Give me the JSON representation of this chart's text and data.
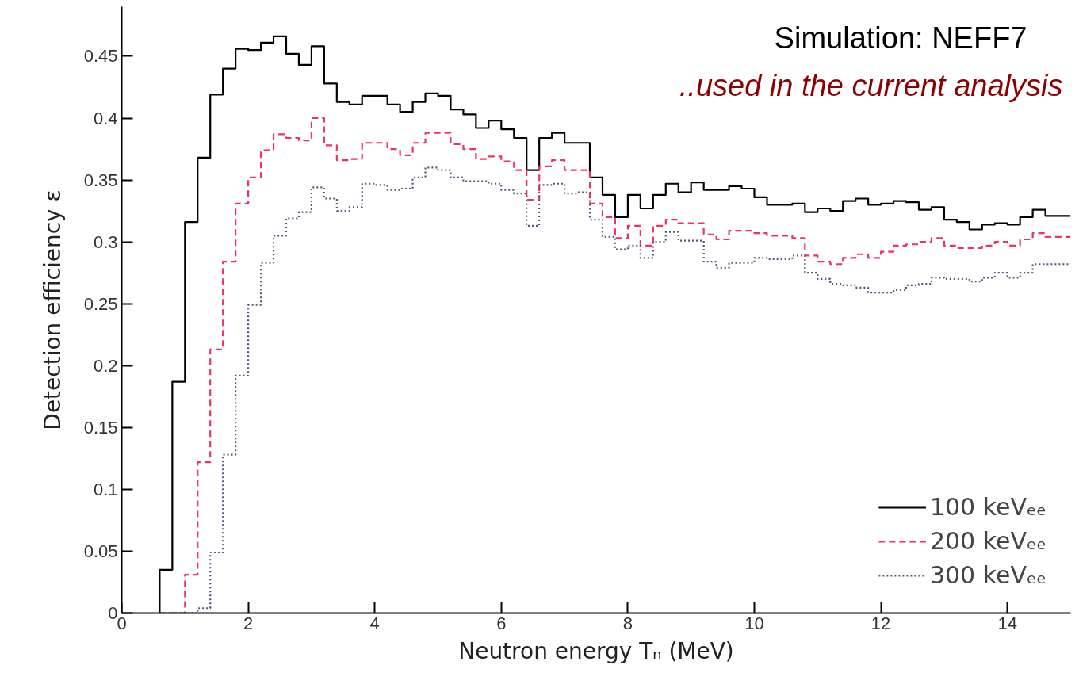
{
  "chart_data": {
    "type": "histogram",
    "xlabel": "Neutron energy Tₙ (MeV)",
    "ylabel": "Detection efficiency ε",
    "annotations": [
      "Simulation: NEFF7",
      "..used in the current analysis"
    ],
    "bins": [
      0.6,
      0.8,
      1.0,
      1.2,
      1.4,
      1.6,
      1.8,
      2.0,
      2.2,
      2.4,
      2.6,
      2.8,
      3.0,
      3.2,
      3.4,
      3.6,
      3.8,
      4.0,
      4.2,
      4.4,
      4.6,
      4.8,
      5.0,
      5.2,
      5.4,
      5.6,
      5.8,
      6.0,
      6.2,
      6.4,
      6.6,
      6.8,
      7.0,
      7.2,
      7.4,
      7.6,
      7.8,
      8.0,
      8.2,
      8.4,
      8.6,
      8.8,
      9.0,
      9.2,
      9.4,
      9.6,
      9.8,
      10.0,
      10.2,
      10.4,
      10.6,
      10.8,
      11.0,
      11.2,
      11.4,
      11.6,
      11.8,
      12.0,
      12.2,
      12.4,
      12.6,
      12.8,
      13.0,
      13.2,
      13.4,
      13.6,
      13.8,
      14.0,
      14.2,
      14.4,
      14.6,
      14.8,
      15.0
    ],
    "series": [
      {
        "name": "100 keVₑₑ",
        "color": "#000000",
        "line_style": "solid",
        "values": [
          0.035,
          0.187,
          0.316,
          0.368,
          0.419,
          0.44,
          0.456,
          0.455,
          0.461,
          0.466,
          0.452,
          0.443,
          0.458,
          0.428,
          0.413,
          0.411,
          0.418,
          0.418,
          0.411,
          0.405,
          0.413,
          0.42,
          0.418,
          0.407,
          0.403,
          0.392,
          0.398,
          0.391,
          0.384,
          0.358,
          0.384,
          0.388,
          0.38,
          0.38,
          0.352,
          0.338,
          0.32,
          0.338,
          0.327,
          0.338,
          0.347,
          0.34,
          0.348,
          0.342,
          0.342,
          0.345,
          0.343,
          0.336,
          0.33,
          0.33,
          0.331,
          0.324,
          0.327,
          0.325,
          0.333,
          0.335,
          0.33,
          0.331,
          0.333,
          0.332,
          0.326,
          0.328,
          0.318,
          0.316,
          0.31,
          0.314,
          0.315,
          0.314,
          0.32,
          0.326,
          0.321,
          0.321
        ]
      },
      {
        "name": "200 keVₑₑ",
        "color": "#f0325f",
        "line_style": "dashed",
        "values": [
          0,
          0,
          0.031,
          0.122,
          0.213,
          0.284,
          0.331,
          0.352,
          0.374,
          0.387,
          0.384,
          0.382,
          0.4,
          0.378,
          0.366,
          0.367,
          0.38,
          0.38,
          0.375,
          0.37,
          0.38,
          0.388,
          0.388,
          0.379,
          0.375,
          0.367,
          0.369,
          0.365,
          0.358,
          0.334,
          0.361,
          0.366,
          0.358,
          0.358,
          0.331,
          0.32,
          0.303,
          0.313,
          0.297,
          0.313,
          0.318,
          0.315,
          0.315,
          0.306,
          0.302,
          0.309,
          0.309,
          0.307,
          0.305,
          0.305,
          0.303,
          0.289,
          0.284,
          0.282,
          0.287,
          0.29,
          0.287,
          0.292,
          0.297,
          0.298,
          0.3,
          0.303,
          0.297,
          0.295,
          0.295,
          0.297,
          0.3,
          0.297,
          0.302,
          0.307,
          0.304,
          0.304
        ]
      },
      {
        "name": "300 keVₑₑ",
        "color": "#55557a",
        "line_style": "dotted",
        "values": [
          0,
          0,
          0,
          0.004,
          0.049,
          0.128,
          0.192,
          0.249,
          0.283,
          0.305,
          0.319,
          0.324,
          0.344,
          0.335,
          0.325,
          0.328,
          0.347,
          0.346,
          0.342,
          0.343,
          0.352,
          0.36,
          0.358,
          0.352,
          0.349,
          0.349,
          0.347,
          0.342,
          0.339,
          0.313,
          0.346,
          0.347,
          0.339,
          0.34,
          0.318,
          0.304,
          0.294,
          0.297,
          0.287,
          0.3,
          0.308,
          0.301,
          0.301,
          0.284,
          0.279,
          0.283,
          0.283,
          0.287,
          0.286,
          0.286,
          0.289,
          0.275,
          0.27,
          0.266,
          0.265,
          0.263,
          0.259,
          0.259,
          0.261,
          0.265,
          0.266,
          0.271,
          0.27,
          0.27,
          0.268,
          0.271,
          0.275,
          0.271,
          0.275,
          0.282,
          0.282,
          0.282
        ]
      }
    ],
    "xlim": [
      0,
      15
    ],
    "xticks": [
      0,
      2,
      4,
      6,
      8,
      10,
      12,
      14
    ],
    "ylim": [
      0,
      0.49
    ],
    "yticks": [
      0,
      0.05,
      0.1,
      0.15,
      0.2,
      0.25,
      0.3,
      0.35,
      0.4,
      0.45
    ],
    "grid": false,
    "legend": "bottom right"
  }
}
